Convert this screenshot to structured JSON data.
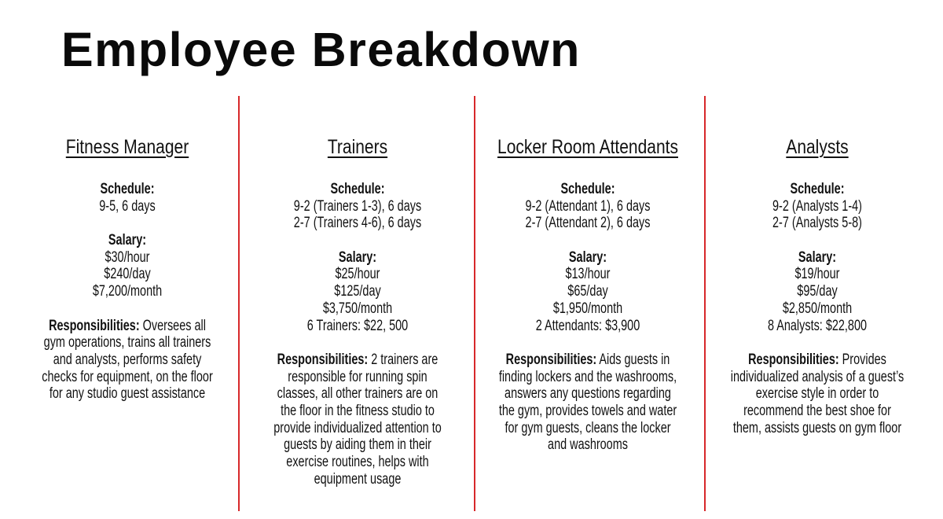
{
  "title": "Employee Breakdown",
  "colors": {
    "divider": "#d7282a",
    "text": "#111111"
  },
  "columns": [
    {
      "heading": "Fitness Manager",
      "schedule_label": "Schedule:",
      "schedule": [
        "9-5, 6 days"
      ],
      "salary_label": "Salary:",
      "salary": [
        "$30/hour",
        "$240/day",
        "$7,200/month"
      ],
      "responsibilities_label": "Responsibilities:",
      "responsibilities": [
        " Oversees all",
        "gym operations, trains all trainers",
        "and analysts, performs safety",
        "checks for equipment, on the floor",
        "for any studio guest assistance"
      ]
    },
    {
      "heading": "Trainers",
      "schedule_label": "Schedule:",
      "schedule": [
        "9-2 (Trainers 1-3), 6 days",
        "2-7 (Trainers 4-6), 6 days"
      ],
      "salary_label": "Salary:",
      "salary": [
        "$25/hour",
        "$125/day",
        "$3,750/month",
        "6 Trainers: $22, 500"
      ],
      "responsibilities_label": "Responsibilities:",
      "responsibilities": [
        " 2 trainers are",
        "responsible for running spin",
        "classes, all other trainers are on",
        "the floor in the fitness studio to",
        "provide individualized attention to",
        "guests by aiding them in their",
        "exercise routines, helps with",
        "equipment usage"
      ]
    },
    {
      "heading": "Locker Room Attendants",
      "schedule_label": "Schedule:",
      "schedule": [
        "9-2 (Attendant 1), 6 days",
        "2-7 (Attendant 2), 6 days"
      ],
      "salary_label": "Salary:",
      "salary": [
        "$13/hour",
        "$65/day",
        "$1,950/month",
        "2 Attendants: $3,900"
      ],
      "responsibilities_label": "Responsibilities:",
      "responsibilities": [
        " Aids guests in",
        "finding lockers and the washrooms,",
        "answers any questions regarding",
        "the gym, provides towels and water",
        "for gym guests, cleans the locker",
        "and washrooms"
      ]
    },
    {
      "heading": "Analysts",
      "schedule_label": "Schedule:",
      "schedule": [
        "9-2 (Analysts 1-4)",
        "2-7 (Analysts 5-8)"
      ],
      "salary_label": "Salary:",
      "salary": [
        "$19/hour",
        "$95/day",
        "$2,850/month",
        "8 Analysts: $22,800"
      ],
      "responsibilities_label": "Responsibilities:",
      "responsibilities": [
        " Provides",
        "individualized analysis of a guest’s",
        "exercise style in order to",
        "recommend the best shoe for",
        "them, assists guests on gym floor"
      ]
    }
  ]
}
